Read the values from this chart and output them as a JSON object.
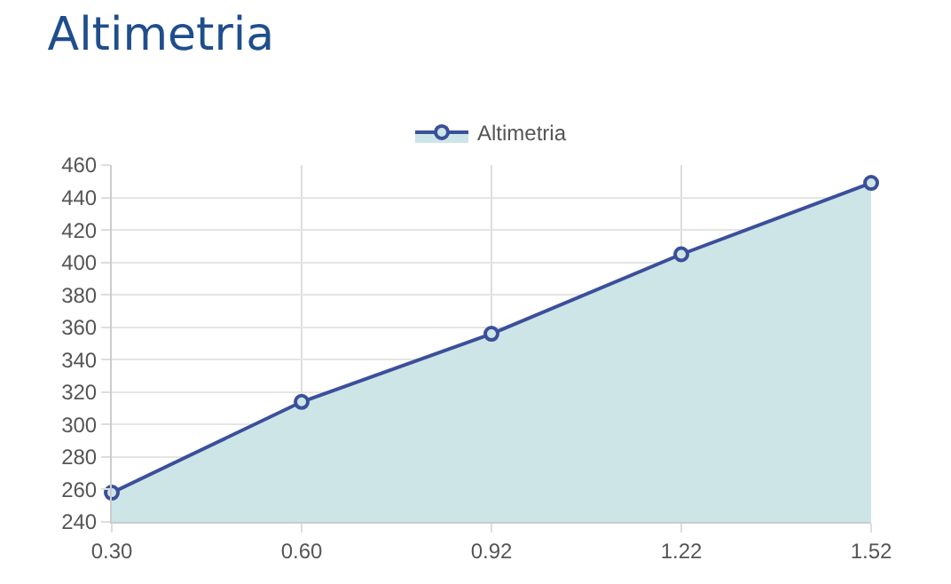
{
  "chart_data": {
    "type": "area",
    "title": "Altimetria",
    "categories": [
      "0.30",
      "0.60",
      "0.92",
      "1.22",
      "1.52"
    ],
    "series": [
      {
        "name": "Altimetria",
        "color": "#3b4f9a",
        "values": [
          258,
          314,
          356,
          405,
          449
        ]
      }
    ],
    "ylim": [
      240,
      460
    ],
    "yticks": [
      240,
      260,
      280,
      300,
      320,
      340,
      360,
      380,
      400,
      420,
      440,
      460
    ],
    "grid": true,
    "legend": "top",
    "marker": "circle"
  }
}
